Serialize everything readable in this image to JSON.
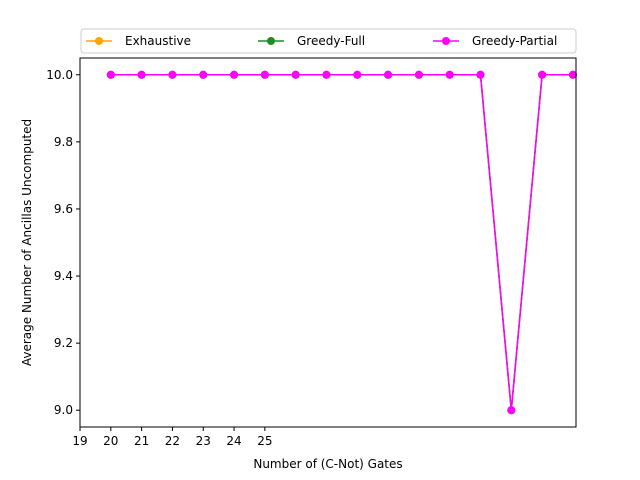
{
  "chart_data": {
    "type": "line",
    "title": "",
    "xlabel": "Number of (C-Not) Gates",
    "ylabel": "Average Number of Ancillas Uncomputed",
    "xlim": [
      19,
      35.1
    ],
    "ylim": [
      8.95,
      10.05
    ],
    "x_ticks": [
      19,
      20,
      21,
      22,
      23,
      24,
      25
    ],
    "y_ticks": [
      9.0,
      9.2,
      9.4,
      9.6,
      9.8,
      10.0
    ],
    "y_tick_labels": [
      "9.0",
      "9.2",
      "9.4",
      "9.6",
      "9.8",
      "10.0"
    ],
    "legend_position": "top",
    "x": [
      20,
      21,
      22,
      23,
      24,
      25,
      26,
      27,
      28,
      29,
      30,
      31,
      32,
      33,
      34,
      35
    ],
    "series": [
      {
        "name": "Exhaustive",
        "color": "#ffa500",
        "marker": "circle",
        "values": [
          10,
          10,
          10,
          10,
          10,
          10,
          10,
          10,
          10,
          10,
          10,
          10,
          10,
          9,
          10,
          10
        ]
      },
      {
        "name": "Greedy-Full",
        "color": "#228b22",
        "marker": "circle",
        "values": [
          10,
          10,
          10,
          10,
          10,
          10,
          10,
          10,
          10,
          10,
          10,
          10,
          10,
          9,
          10,
          10
        ]
      },
      {
        "name": "Greedy-Partial",
        "color": "#ff00ff",
        "marker": "circle",
        "values": [
          10,
          10,
          10,
          10,
          10,
          10,
          10,
          10,
          10,
          10,
          10,
          10,
          10,
          9,
          10,
          10
        ]
      }
    ]
  }
}
